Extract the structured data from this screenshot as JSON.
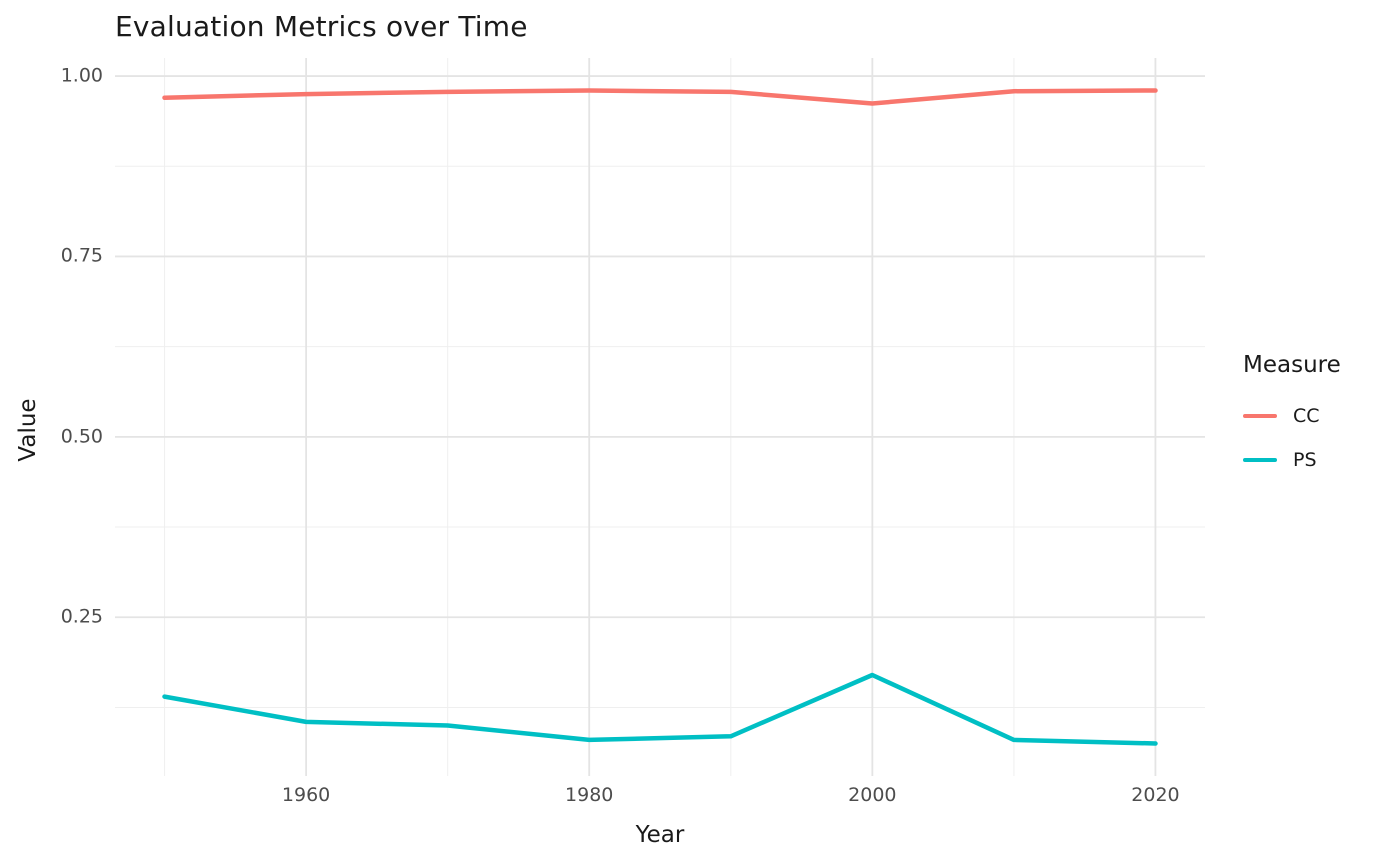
{
  "legend": {
    "title": "Measure"
  },
  "chart_data": {
    "type": "line",
    "title": "Evaluation Metrics over Time",
    "xlabel": "Year",
    "ylabel": "Value",
    "x": [
      1950,
      1960,
      1970,
      1980,
      1990,
      2000,
      2010,
      2020
    ],
    "series": [
      {
        "name": "CC",
        "color": "#F8766D",
        "values": [
          0.97,
          0.975,
          0.978,
          0.98,
          0.978,
          0.962,
          0.979,
          0.98
        ]
      },
      {
        "name": "PS",
        "color": "#00BFC4",
        "values": [
          0.14,
          0.105,
          0.1,
          0.08,
          0.085,
          0.17,
          0.08,
          0.075
        ]
      }
    ],
    "x_ticks": [
      "1960",
      "1980",
      "2000",
      "2020"
    ],
    "x_tick_values": [
      1960,
      1980,
      2000,
      2020
    ],
    "x_minor": [
      1950,
      1970,
      1990,
      2010
    ],
    "y_ticks": [
      "0.25",
      "0.50",
      "0.75",
      "1.00"
    ],
    "y_tick_values": [
      0.25,
      0.5,
      0.75,
      1.0
    ],
    "y_minor": [
      0.125,
      0.375,
      0.625,
      0.875
    ],
    "x_domain": [
      1946.5,
      2023.5
    ],
    "y_domain": [
      0.03,
      1.025
    ],
    "grid": true,
    "legend_position": "right",
    "background_color": "#FFFFFF",
    "grid_major_color": "#E4E4E4",
    "grid_minor_color": "#EFEFEF",
    "tick_label_color": "#4D4D4D",
    "text_color": "#1A1A1A"
  }
}
